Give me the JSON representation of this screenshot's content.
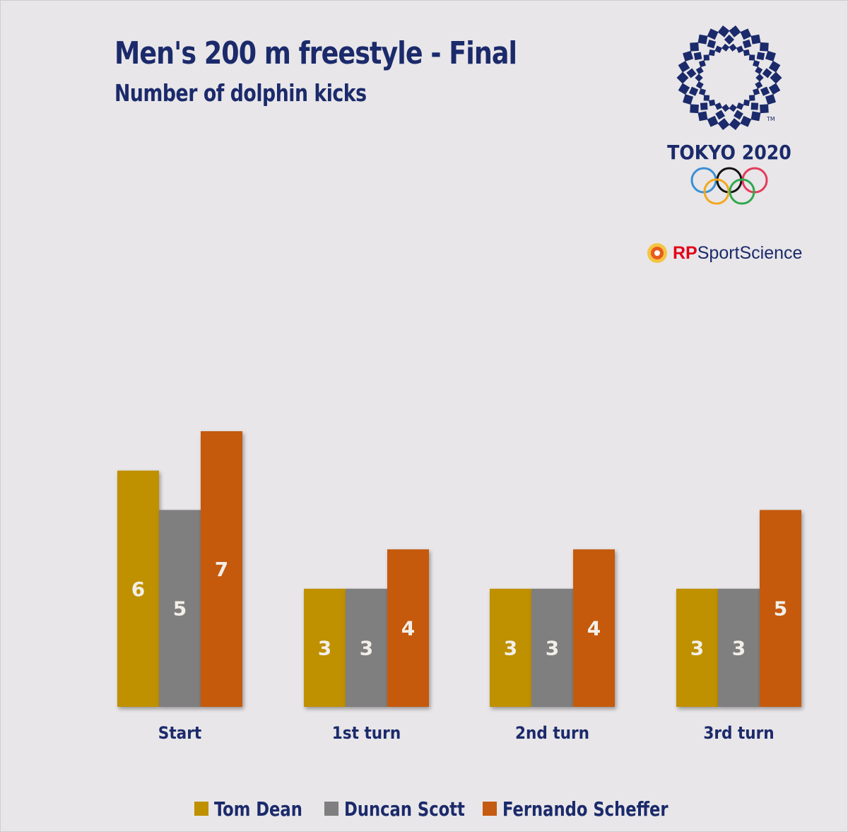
{
  "chart_data": {
    "type": "bar",
    "title": "Men's 200 m freestyle - Final",
    "subtitle": "Number of dolphin kicks",
    "categories": [
      "Start",
      "1st turn",
      "2nd turn",
      "3rd turn"
    ],
    "series": [
      {
        "name": "Tom Dean",
        "color": "#bf9000",
        "values": [
          6,
          3,
          3,
          3
        ]
      },
      {
        "name": "Duncan Scott",
        "color": "#7f7f7f",
        "values": [
          5,
          3,
          3,
          3
        ]
      },
      {
        "name": "Fernando Scheffer",
        "color": "#c55a11",
        "values": [
          7,
          4,
          4,
          5
        ]
      }
    ],
    "ylim": [
      0,
      14
    ],
    "grid": false,
    "legend_position": "bottom"
  },
  "branding": {
    "olympic_logo_text": "TOKYO 2020",
    "brand_icon": "sport-science-emblem-icon",
    "brand_name_prefix": "RP",
    "brand_name_suffix": "SportScience",
    "brand_prefix_color": "#e2001a",
    "brand_suffix_color": "#1b2a6b"
  },
  "colors": {
    "background": "#e8e6e8",
    "text": "#1b2a6b"
  }
}
